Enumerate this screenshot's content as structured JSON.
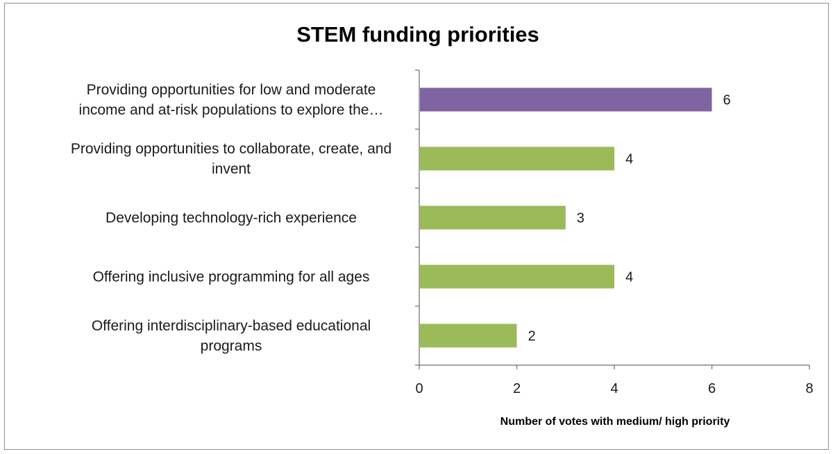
{
  "chart_data": {
    "type": "bar",
    "orientation": "horizontal",
    "title": "STEM funding priorities",
    "xlabel": "Number of votes with medium/ high priority",
    "ylabel": "",
    "xlim": [
      0,
      8
    ],
    "x_ticks": [
      "0",
      "2",
      "4",
      "6",
      "8"
    ],
    "grid": false,
    "categories": [
      {
        "label": "Providing opportunities for low and moderate income and at-risk populations to explore the…",
        "lines": [
          "Providing opportunities for low and moderate",
          "income and at-risk populations to explore the…"
        ],
        "value": 6,
        "color": "#8064a2"
      },
      {
        "label": "Providing opportunities to collaborate, create, and invent",
        "lines": [
          "Providing opportunities to collaborate, create, and",
          "invent"
        ],
        "value": 4,
        "color": "#9bbb59"
      },
      {
        "label": "Developing technology-rich experience",
        "lines": [
          "Developing technology-rich experience"
        ],
        "value": 3,
        "color": "#9bbb59"
      },
      {
        "label": "Offering inclusive programming for all ages",
        "lines": [
          "Offering inclusive programming for all ages"
        ],
        "value": 4,
        "color": "#9bbb59"
      },
      {
        "label": "Offering interdisciplinary-based educational programs",
        "lines": [
          "Offering interdisciplinary-based educational",
          "programs"
        ],
        "value": 2,
        "color": "#9bbb59"
      }
    ],
    "axis_color": "#868686"
  }
}
